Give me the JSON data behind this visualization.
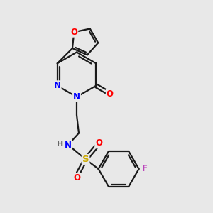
{
  "bg_color": "#e8e8e8",
  "bond_color": "#1a1a1a",
  "N_color": "#0000ff",
  "O_color": "#ff0000",
  "S_color": "#ccaa00",
  "F_color": "#bb44bb",
  "H_color": "#666666",
  "line_width": 1.6,
  "font_size": 8.5,
  "fig_size": [
    3.0,
    3.0
  ],
  "dpi": 100,
  "xlim": [
    0,
    10
  ],
  "ylim": [
    0,
    10
  ]
}
